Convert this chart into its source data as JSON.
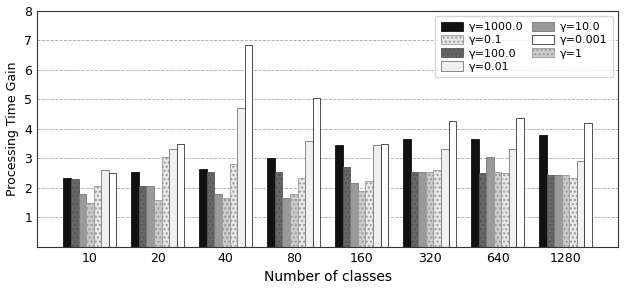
{
  "categories": [
    10,
    20,
    40,
    80,
    160,
    320,
    640,
    1280
  ],
  "gammas": [
    "1000.0",
    "100.0",
    "10.0",
    "1",
    "0.1",
    "0.01",
    "0.001"
  ],
  "values": {
    "1000.0": [
      2.35,
      2.55,
      2.65,
      3.0,
      3.45,
      3.65,
      3.65,
      3.8
    ],
    "100.0": [
      2.3,
      2.05,
      2.55,
      2.55,
      2.7,
      2.55,
      2.5,
      2.45
    ],
    "10.0": [
      1.8,
      2.05,
      1.8,
      1.65,
      2.15,
      2.55,
      3.05,
      2.45
    ],
    "1": [
      1.5,
      1.6,
      1.65,
      1.8,
      1.9,
      2.55,
      2.55,
      2.45
    ],
    "0.1": [
      2.05,
      3.05,
      2.8,
      2.35,
      2.25,
      2.6,
      2.5,
      2.35
    ],
    "0.01": [
      2.6,
      3.3,
      4.7,
      3.6,
      3.45,
      3.3,
      3.3,
      2.9
    ],
    "0.001": [
      2.5,
      3.5,
      6.85,
      5.05,
      3.5,
      4.25,
      4.35,
      4.2
    ]
  },
  "facecolors": {
    "1000.0": "#111111",
    "100.0": "#666666",
    "10.0": "#999999",
    "1": "#cccccc",
    "0.1": "#e8e8e8",
    "0.01": "#f0f0f0",
    "0.001": "#ffffff"
  },
  "hatches": {
    "1000.0": "",
    "100.0": "....",
    "10.0": "",
    "1": "....",
    "0.1": "....",
    "0.01": "",
    "0.001": ""
  },
  "edgecolors": {
    "1000.0": "#111111",
    "100.0": "#555555",
    "10.0": "#777777",
    "1": "#999999",
    "0.1": "#999999",
    "0.01": "#777777",
    "0.001": "#333333"
  },
  "legend_left": [
    "1000.0",
    "100.0",
    "10.0",
    "1"
  ],
  "legend_right": [
    "0.1",
    "0.01",
    "0.001"
  ],
  "legend_labels": {
    "1000.0": "γ=1000.0",
    "100.0": "γ=100.0",
    "10.0": "γ=10.0",
    "1": "γ=1",
    "0.1": "γ=0.1",
    "0.01": "γ=0.01",
    "0.001": "γ=0.001"
  },
  "ylabel": "Processing Time Gain",
  "xlabel": "Number of classes",
  "ylim": [
    0,
    8
  ],
  "yticks": [
    1,
    2,
    3,
    4,
    5,
    6,
    7,
    8
  ],
  "group_width": 0.78
}
